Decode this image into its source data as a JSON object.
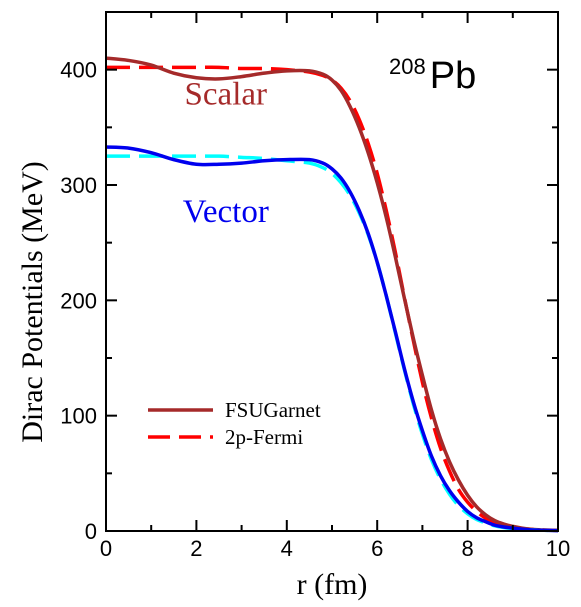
{
  "chart_data": {
    "type": "line",
    "xlabel": "r (fm)",
    "ylabel": "Dirac Potentials (MeV)",
    "xlim": [
      0,
      10
    ],
    "ylim": [
      0,
      450
    ],
    "x_ticks": [
      0,
      2,
      4,
      6,
      8,
      10
    ],
    "y_ticks": [
      0,
      100,
      200,
      300,
      400
    ],
    "grid": false,
    "nucleus": {
      "mass": "208",
      "symbol": "Pb"
    },
    "annotations": [
      {
        "text": "Scalar",
        "x": 2.65,
        "y": 370,
        "color": "#a52a2a"
      },
      {
        "text": "Vector",
        "x": 2.65,
        "y": 268,
        "color": "#0000ee"
      }
    ],
    "legend": {
      "position": "lower-left",
      "entries": [
        {
          "label": "FSUGarnet",
          "color": "#a52a2a",
          "dash": "solid"
        },
        {
          "label": "2p-Fermi",
          "color": "#ff0000",
          "dash": "dashed"
        }
      ]
    },
    "series": [
      {
        "legend": "2p-Fermi",
        "component": "scalar",
        "color": "#ff0000",
        "dash": "dashed",
        "x": [
          0,
          0.5,
          1,
          1.5,
          2,
          2.5,
          3,
          3.5,
          4,
          4.5,
          4.8,
          5,
          5.2,
          5.4,
          5.6,
          5.8,
          6,
          6.2,
          6.4,
          6.6,
          6.8,
          7,
          7.2,
          7.4,
          7.6,
          7.8,
          8,
          8.2,
          8.4,
          8.6,
          8.8,
          9,
          9.2,
          9.4,
          9.6,
          9.8,
          10
        ],
        "y": [
          402,
          402,
          402,
          402,
          402,
          402,
          401,
          401,
          400,
          398,
          395,
          391,
          384,
          373,
          357,
          336,
          310,
          278,
          242,
          203,
          165,
          129,
          98,
          72,
          52,
          36,
          25,
          17,
          11,
          7,
          5,
          3,
          2,
          1.5,
          1,
          0.8,
          0.5
        ]
      },
      {
        "legend": "FSUGarnet",
        "component": "scalar",
        "color": "#a52a2a",
        "dash": "solid",
        "x": [
          0,
          0.5,
          1,
          1.5,
          2,
          2.5,
          3,
          3.5,
          4,
          4.5,
          4.8,
          5,
          5.2,
          5.4,
          5.6,
          5.8,
          6,
          6.2,
          6.4,
          6.6,
          6.8,
          7,
          7.2,
          7.4,
          7.6,
          7.8,
          8,
          8.2,
          8.4,
          8.6,
          8.8,
          9,
          9.2,
          9.4,
          9.6,
          9.8,
          10
        ],
        "y": [
          410,
          408,
          404,
          397,
          393,
          392,
          394,
          397,
          399,
          399,
          396,
          391,
          382,
          368,
          350,
          328,
          302,
          272,
          238,
          202,
          167,
          135,
          105,
          80,
          60,
          44,
          31,
          21,
          14,
          9,
          6,
          4,
          2.5,
          1.5,
          1,
          0.7,
          0.5
        ]
      },
      {
        "legend": "2p-Fermi",
        "component": "vector",
        "color": "#00ffff",
        "dash": "dashed",
        "x": [
          0,
          0.5,
          1,
          1.5,
          2,
          2.5,
          3,
          3.5,
          4,
          4.5,
          4.8,
          5,
          5.2,
          5.4,
          5.6,
          5.8,
          6,
          6.2,
          6.4,
          6.6,
          6.8,
          7,
          7.2,
          7.4,
          7.6,
          7.8,
          8,
          8.2,
          8.4,
          8.6,
          8.8,
          9,
          9.2,
          9.4,
          9.6,
          9.8,
          10
        ],
        "y": [
          325,
          325,
          325,
          325,
          325,
          325,
          324,
          323,
          321,
          319,
          315,
          310,
          302,
          291,
          276,
          257,
          233,
          204,
          172,
          140,
          110,
          84,
          62,
          45,
          32,
          22,
          15,
          10,
          7,
          4.5,
          3,
          2,
          1.3,
          1,
          0.7,
          0.5,
          0.3
        ]
      },
      {
        "legend": "FSUGarnet",
        "component": "vector",
        "color": "#0000ee",
        "dash": "solid",
        "x": [
          0,
          0.5,
          1,
          1.5,
          2,
          2.5,
          3,
          3.5,
          4,
          4.5,
          4.8,
          5,
          5.2,
          5.4,
          5.6,
          5.8,
          6,
          6.2,
          6.4,
          6.6,
          6.8,
          7,
          7.2,
          7.4,
          7.6,
          7.8,
          8,
          8.2,
          8.4,
          8.6,
          8.8,
          9,
          9.2,
          9.4,
          9.6,
          9.8,
          10
        ],
        "y": [
          333,
          332,
          328,
          322,
          318,
          318,
          319,
          321,
          322,
          322,
          319,
          314,
          306,
          294,
          278,
          258,
          233,
          204,
          173,
          141,
          112,
          87,
          65,
          48,
          35,
          25,
          17,
          11.5,
          8,
          5,
          3.5,
          2.5,
          1.6,
          1,
          0.7,
          0.5,
          0.3
        ]
      }
    ]
  }
}
